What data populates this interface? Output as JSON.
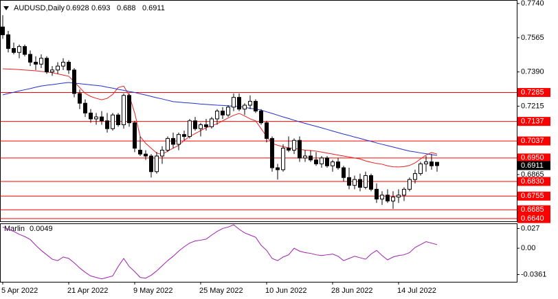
{
  "chart_data": [
    {
      "type": "candlestick",
      "title": "AUDUSD,Daily",
      "categories": [
        "5 Apr 2022",
        null,
        null,
        null,
        null,
        null,
        null,
        null,
        null,
        null,
        null,
        null,
        "21 Apr 2022",
        null,
        null,
        null,
        null,
        null,
        null,
        null,
        null,
        null,
        null,
        null,
        "9 May 2022",
        null,
        null,
        null,
        null,
        null,
        null,
        null,
        null,
        null,
        null,
        null,
        "25 May 2022",
        null,
        null,
        null,
        null,
        null,
        null,
        null,
        null,
        null,
        null,
        null,
        "10 Jun 2022",
        null,
        null,
        null,
        null,
        null,
        null,
        null,
        null,
        null,
        null,
        null,
        "28 Jun 2022",
        null,
        null,
        null,
        null,
        null,
        null,
        null,
        null,
        null,
        null,
        null,
        "14 Jul 2022",
        null,
        null,
        null,
        null,
        null,
        null,
        null
      ],
      "open": [
        0.762,
        0.758,
        0.751,
        0.749,
        0.752,
        0.748,
        0.744,
        0.743,
        0.746,
        0.739,
        0.74,
        0.742,
        0.744,
        0.74,
        0.728,
        0.723,
        0.718,
        0.715,
        0.716,
        0.714,
        0.71,
        0.717,
        0.712,
        0.727,
        0.713,
        0.699,
        0.697,
        0.696,
        0.688,
        0.696,
        0.699,
        0.705,
        0.702,
        0.707,
        0.706,
        0.714,
        0.71,
        0.712,
        0.711,
        0.715,
        0.719,
        0.717,
        0.721,
        0.726,
        0.72,
        0.722,
        0.724,
        0.719,
        0.713,
        0.705,
        0.69,
        0.689,
        0.7,
        0.699,
        0.704,
        0.695,
        0.696,
        0.694,
        0.692,
        0.695,
        0.691,
        0.693,
        0.69,
        0.685,
        0.681,
        0.684,
        0.68,
        0.686,
        0.679,
        0.674,
        0.676,
        0.673,
        0.675,
        0.676,
        0.679,
        0.684,
        0.687,
        0.692,
        0.693,
        0.6928
      ],
      "high": [
        0.768,
        0.76,
        0.754,
        0.753,
        0.753,
        0.75,
        0.747,
        0.748,
        0.747,
        0.742,
        0.744,
        0.746,
        0.745,
        0.741,
        0.73,
        0.725,
        0.72,
        0.718,
        0.719,
        0.718,
        0.718,
        0.718,
        0.728,
        0.728,
        0.714,
        0.706,
        0.699,
        0.697,
        0.698,
        0.701,
        0.706,
        0.708,
        0.708,
        0.709,
        0.715,
        0.716,
        0.713,
        0.715,
        0.716,
        0.72,
        0.721,
        0.722,
        0.728,
        0.728,
        0.723,
        0.727,
        0.725,
        0.72,
        0.714,
        0.706,
        0.692,
        0.702,
        0.706,
        0.705,
        0.706,
        0.699,
        0.699,
        0.698,
        0.696,
        0.696,
        0.694,
        0.695,
        0.691,
        0.69,
        0.686,
        0.687,
        0.688,
        0.687,
        0.682,
        0.678,
        0.679,
        0.678,
        0.679,
        0.68,
        0.685,
        0.689,
        0.693,
        0.696,
        0.697,
        0.693
      ],
      "low": [
        0.756,
        0.749,
        0.748,
        0.746,
        0.747,
        0.742,
        0.74,
        0.741,
        0.738,
        0.737,
        0.738,
        0.74,
        0.738,
        0.726,
        0.72,
        0.716,
        0.713,
        0.712,
        0.712,
        0.708,
        0.709,
        0.711,
        0.71,
        0.711,
        0.698,
        0.696,
        0.694,
        0.685,
        0.687,
        0.692,
        0.698,
        0.7,
        0.699,
        0.704,
        0.705,
        0.709,
        0.706,
        0.709,
        0.71,
        0.712,
        0.715,
        0.716,
        0.719,
        0.719,
        0.717,
        0.72,
        0.718,
        0.712,
        0.703,
        0.688,
        0.684,
        0.688,
        0.698,
        0.697,
        0.693,
        0.693,
        0.693,
        0.691,
        0.69,
        0.69,
        0.688,
        0.689,
        0.683,
        0.679,
        0.679,
        0.678,
        0.679,
        0.678,
        0.672,
        0.671,
        0.672,
        0.669,
        0.672,
        0.673,
        0.678,
        0.682,
        0.686,
        0.688,
        0.689,
        0.688
      ],
      "close": [
        0.758,
        0.751,
        0.749,
        0.752,
        0.748,
        0.744,
        0.743,
        0.746,
        0.739,
        0.74,
        0.742,
        0.744,
        0.74,
        0.728,
        0.723,
        0.718,
        0.715,
        0.716,
        0.714,
        0.71,
        0.717,
        0.712,
        0.727,
        0.713,
        0.7,
        0.697,
        0.696,
        0.688,
        0.696,
        0.699,
        0.705,
        0.702,
        0.707,
        0.706,
        0.714,
        0.71,
        0.712,
        0.711,
        0.715,
        0.719,
        0.717,
        0.721,
        0.726,
        0.72,
        0.722,
        0.724,
        0.719,
        0.713,
        0.705,
        0.69,
        0.689,
        0.7,
        0.699,
        0.704,
        0.695,
        0.696,
        0.694,
        0.692,
        0.695,
        0.691,
        0.693,
        0.69,
        0.685,
        0.681,
        0.684,
        0.68,
        0.686,
        0.679,
        0.674,
        0.676,
        0.673,
        0.675,
        0.676,
        0.679,
        0.684,
        0.687,
        0.692,
        0.693,
        0.691,
        0.6911
      ],
      "series": [
        {
          "color": "#e8201e",
          "values": [
            0.7406,
            0.7405,
            0.7404,
            0.7402,
            0.74,
            0.7398,
            0.7396,
            0.7393,
            0.739,
            0.7386,
            0.738,
            0.7374,
            0.7368,
            0.734,
            0.731,
            0.728,
            0.7265,
            0.7255,
            0.7248,
            0.7255,
            0.7275,
            0.731,
            0.7318,
            0.727,
            0.718,
            0.706,
            0.7025,
            0.7,
            0.6975,
            0.6968,
            0.6985,
            0.7,
            0.7015,
            0.704,
            0.706,
            0.7075,
            0.709,
            0.7105,
            0.7115,
            0.7125,
            0.714,
            0.7155,
            0.7168,
            0.7178,
            0.7165,
            0.715,
            0.714,
            0.71,
            0.706,
            0.7025,
            0.7015,
            0.7008,
            0.7002,
            0.6998,
            0.6995,
            0.699,
            0.6988,
            0.6985,
            0.698,
            0.6975,
            0.697,
            0.6965,
            0.696,
            0.6955,
            0.695,
            0.6945,
            0.6935,
            0.6928,
            0.6922,
            0.6918,
            0.691,
            0.6905,
            0.6904,
            0.6906,
            0.6912,
            0.6925,
            0.6945,
            0.6965,
            0.6978,
            0.697
          ]
        },
        {
          "color": "#2030d0",
          "values": [
            0.7273,
            0.728,
            0.7286,
            0.7293,
            0.7299,
            0.7305,
            0.7312,
            0.7318,
            0.7322,
            0.7325,
            0.7329,
            0.7333,
            0.7336,
            0.7333,
            0.733,
            0.7327,
            0.7324,
            0.7321,
            0.7318,
            0.7312,
            0.7307,
            0.7301,
            0.7296,
            0.729,
            0.7285,
            0.7278,
            0.7272,
            0.7265,
            0.7258,
            0.7252,
            0.7245,
            0.7238,
            0.7236,
            0.7233,
            0.7231,
            0.7229,
            0.7226,
            0.7224,
            0.7222,
            0.722,
            0.7219,
            0.7217,
            0.7215,
            0.7213,
            0.7209,
            0.7204,
            0.72,
            0.7195,
            0.7186,
            0.7178,
            0.7169,
            0.716,
            0.7152,
            0.7143,
            0.7135,
            0.7127,
            0.7119,
            0.7112,
            0.7104,
            0.7096,
            0.7088,
            0.708,
            0.7072,
            0.7065,
            0.7057,
            0.705,
            0.7042,
            0.7035,
            0.7027,
            0.702,
            0.7013,
            0.7006,
            0.6999,
            0.6992,
            0.6985,
            0.6981,
            0.6976,
            0.6972,
            0.6967,
            0.6963
          ]
        }
      ],
      "levels": [
        0.7285,
        0.7137,
        0.7037,
        {
          "value": 0.695,
          "label": "0.6950"
        },
        {
          "value": 0.683,
          "label": "0.6830"
        },
        0.6755,
        0.6685,
        {
          "value": 0.664,
          "label": "0.6640"
        }
      ],
      "level_color": "#ff0000",
      "ylim": [
        0.6626,
        0.7758
      ],
      "yticks": [
        {
          "value": 0.774,
          "label": "0.7740"
        },
        0.7565,
        {
          "value": 0.739,
          "label": "0.7390"
        },
        0.7215,
        0.6865
      ]
    },
    {
      "type": "line",
      "title": "Marlin",
      "series": [
        {
          "color": "#a020b0",
          "values": [
            0.029,
            0.026,
            0.023,
            0.019,
            0.016,
            0.012,
            0.004,
            -0.003,
            -0.009,
            -0.015,
            -0.017,
            -0.012,
            -0.014,
            -0.02,
            -0.027,
            -0.033,
            -0.038,
            -0.04,
            -0.042,
            -0.04,
            -0.038,
            -0.025,
            -0.014,
            -0.025,
            -0.032,
            -0.04,
            -0.041,
            -0.037,
            -0.031,
            -0.024,
            -0.017,
            -0.011,
            -0.004,
            0.002,
            0.007,
            0.01,
            0.011,
            0.0125,
            0.018,
            0.023,
            0.027,
            0.029,
            0.032,
            0.026,
            0.021,
            0.018,
            0.015,
            0.004,
            -0.003,
            -0.014,
            -0.017,
            -0.012,
            -0.009,
            0.0,
            -0.004,
            -0.006,
            -0.007,
            -0.009,
            -0.01,
            -0.009,
            -0.008,
            -0.011,
            -0.017,
            -0.014,
            -0.011,
            -0.013,
            -0.015,
            -0.008,
            -0.003,
            -0.01,
            -0.016,
            -0.012,
            -0.01,
            -0.009,
            -0.006,
            0.001,
            0.005,
            0.009,
            0.007,
            0.0049
          ]
        }
      ],
      "ylim": [
        -0.046,
        0.034
      ],
      "yticks": [
        0.027,
        {
          "value": 0,
          "label": "0.00"
        },
        -0.0361
      ]
    }
  ]
}
